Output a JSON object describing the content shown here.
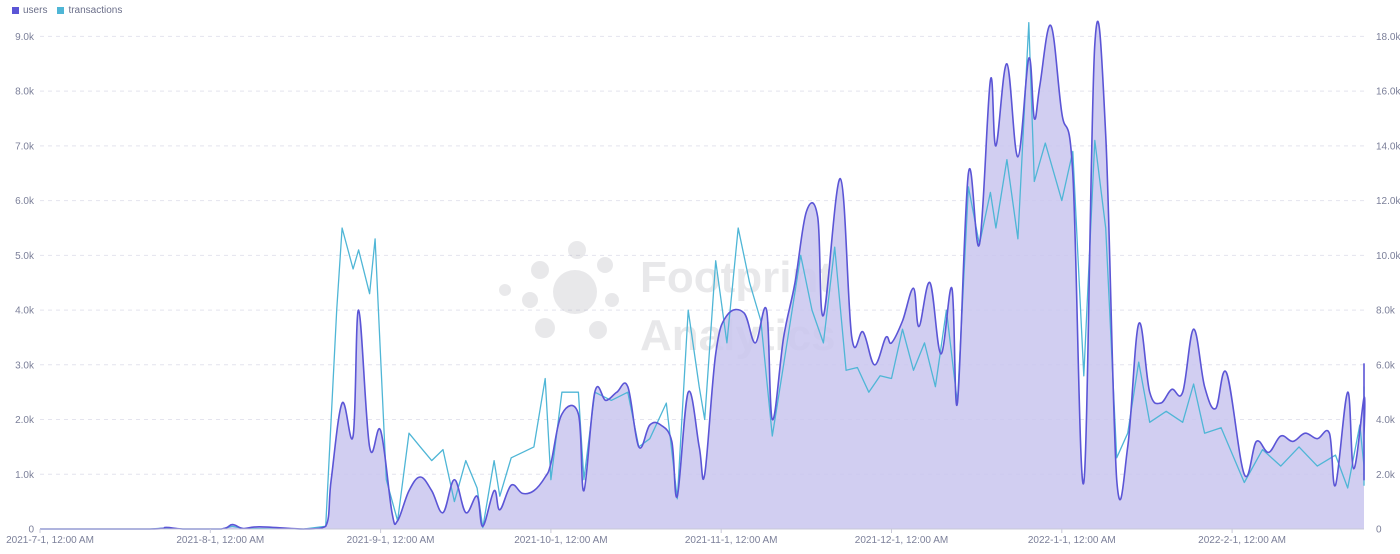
{
  "legend": [
    {
      "label": "users",
      "color": "#5b55d6"
    },
    {
      "label": "transactions",
      "color": "#4fb6d6"
    }
  ],
  "watermark": {
    "line1": "Footprint",
    "line2": "Analytics"
  },
  "chart_data": {
    "type": "line",
    "x_start": "2021-07-01",
    "x_end": "2022-02-28",
    "x_ticks": [
      "2021-7-1, 12:00 AM",
      "2021-8-1, 12:00 AM",
      "2021-9-1, 12:00 AM",
      "2021-10-1, 12:00 AM",
      "2021-11-1, 12:00 AM",
      "2021-12-1, 12:00 AM",
      "2022-1-1, 12:00 AM",
      "2022-2-1, 12:00 AM"
    ],
    "y_left_ticks": [
      "0",
      "1.0k",
      "2.0k",
      "3.0k",
      "4.0k",
      "5.0k",
      "6.0k",
      "7.0k",
      "8.0k",
      "9.0k"
    ],
    "y_right_ticks": [
      "0",
      "2.0k",
      "4.0k",
      "6.0k",
      "8.0k",
      "10.0k",
      "12.0k",
      "14.0k",
      "16.0k",
      "18.0k"
    ],
    "y_left_range": [
      0,
      9300
    ],
    "y_right_range": [
      0,
      18600
    ],
    "grid": "horizontal dashed",
    "legend_position": "top-left",
    "series": [
      {
        "name": "users",
        "axis": "left",
        "area": true,
        "color": "#5b55d6",
        "fill": "#c9c5ef",
        "points": [
          [
            "2021-07-01",
            0
          ],
          [
            "2021-07-21",
            0
          ],
          [
            "2021-07-24",
            30
          ],
          [
            "2021-07-27",
            0
          ],
          [
            "2021-08-03",
            0
          ],
          [
            "2021-08-05",
            80
          ],
          [
            "2021-08-07",
            10
          ],
          [
            "2021-08-10",
            40
          ],
          [
            "2021-08-18",
            0
          ],
          [
            "2021-08-22",
            50
          ],
          [
            "2021-08-23",
            900
          ],
          [
            "2021-08-25",
            2300
          ],
          [
            "2021-08-27",
            1700
          ],
          [
            "2021-08-28",
            4000
          ],
          [
            "2021-08-30",
            1500
          ],
          [
            "2021-09-01",
            1800
          ],
          [
            "2021-09-03",
            300
          ],
          [
            "2021-09-04",
            150
          ],
          [
            "2021-09-06",
            700
          ],
          [
            "2021-09-08",
            950
          ],
          [
            "2021-09-10",
            700
          ],
          [
            "2021-09-12",
            300
          ],
          [
            "2021-09-14",
            900
          ],
          [
            "2021-09-16",
            300
          ],
          [
            "2021-09-18",
            600
          ],
          [
            "2021-09-19",
            50
          ],
          [
            "2021-09-21",
            700
          ],
          [
            "2021-09-22",
            350
          ],
          [
            "2021-09-24",
            800
          ],
          [
            "2021-09-26",
            650
          ],
          [
            "2021-09-28",
            700
          ],
          [
            "2021-09-30",
            950
          ],
          [
            "2021-10-01",
            1200
          ],
          [
            "2021-10-03",
            2100
          ],
          [
            "2021-10-06",
            2100
          ],
          [
            "2021-10-07",
            700
          ],
          [
            "2021-10-09",
            2500
          ],
          [
            "2021-10-11",
            2350
          ],
          [
            "2021-10-13",
            2500
          ],
          [
            "2021-10-15",
            2600
          ],
          [
            "2021-10-17",
            1500
          ],
          [
            "2021-10-19",
            1900
          ],
          [
            "2021-10-21",
            1900
          ],
          [
            "2021-10-23",
            1600
          ],
          [
            "2021-10-24",
            600
          ],
          [
            "2021-10-26",
            2500
          ],
          [
            "2021-10-28",
            1500
          ],
          [
            "2021-10-29",
            1000
          ],
          [
            "2021-10-31",
            3200
          ],
          [
            "2021-11-02",
            3900
          ],
          [
            "2021-11-05",
            3950
          ],
          [
            "2021-11-07",
            3400
          ],
          [
            "2021-11-09",
            4000
          ],
          [
            "2021-11-10",
            2000
          ],
          [
            "2021-11-12",
            3500
          ],
          [
            "2021-11-14",
            4500
          ],
          [
            "2021-11-16",
            5800
          ],
          [
            "2021-11-18",
            5700
          ],
          [
            "2021-11-19",
            3900
          ],
          [
            "2021-11-22",
            6400
          ],
          [
            "2021-11-24",
            3500
          ],
          [
            "2021-11-26",
            3600
          ],
          [
            "2021-11-28",
            3000
          ],
          [
            "2021-11-30",
            3500
          ],
          [
            "2021-12-01",
            3400
          ],
          [
            "2021-12-03",
            3800
          ],
          [
            "2021-12-05",
            4400
          ],
          [
            "2021-12-06",
            3700
          ],
          [
            "2021-12-08",
            4500
          ],
          [
            "2021-12-10",
            3200
          ],
          [
            "2021-12-12",
            4400
          ],
          [
            "2021-12-13",
            2300
          ],
          [
            "2021-12-15",
            6500
          ],
          [
            "2021-12-17",
            5200
          ],
          [
            "2021-12-19",
            8200
          ],
          [
            "2021-12-20",
            7000
          ],
          [
            "2021-12-22",
            8500
          ],
          [
            "2021-12-24",
            6800
          ],
          [
            "2021-12-26",
            8600
          ],
          [
            "2021-12-27",
            7500
          ],
          [
            "2021-12-28",
            8100
          ],
          [
            "2021-12-30",
            9200
          ],
          [
            "2022-01-01",
            7600
          ],
          [
            "2022-01-03",
            6500
          ],
          [
            "2022-01-05",
            850
          ],
          [
            "2022-01-07",
            8850
          ],
          [
            "2022-01-09",
            7200
          ],
          [
            "2022-01-11",
            900
          ],
          [
            "2022-01-13",
            1500
          ],
          [
            "2022-01-15",
            3750
          ],
          [
            "2022-01-17",
            2500
          ],
          [
            "2022-01-19",
            2300
          ],
          [
            "2022-01-21",
            2550
          ],
          [
            "2022-01-23",
            2500
          ],
          [
            "2022-01-25",
            3650
          ],
          [
            "2022-01-27",
            2600
          ],
          [
            "2022-01-29",
            2200
          ],
          [
            "2022-01-31",
            2850
          ],
          [
            "2022-02-03",
            1000
          ],
          [
            "2022-02-05",
            1600
          ],
          [
            "2022-02-07",
            1400
          ],
          [
            "2022-02-09",
            1700
          ],
          [
            "2022-02-11",
            1600
          ],
          [
            "2022-02-13",
            1750
          ],
          [
            "2022-02-15",
            1650
          ],
          [
            "2022-02-17",
            1750
          ],
          [
            "2022-02-18",
            800
          ],
          [
            "2022-02-20",
            2500
          ],
          [
            "2022-02-21",
            1100
          ],
          [
            "2022-02-23",
            2400
          ],
          [
            "2022-02-25",
            1700
          ],
          [
            "2022-02-26",
            2000
          ],
          [
            "2022-02-28",
            1000
          ],
          [
            "2022-03-02",
            3000
          ],
          [
            "2022-03-04",
            1900
          ],
          [
            "2022-03-06",
            2200
          ],
          [
            "2022-03-07",
            900
          ],
          [
            "2022-03-09",
            2100
          ],
          [
            "2022-03-13",
            2050
          ],
          [
            "2022-03-15",
            2150
          ],
          [
            "2022-03-18",
            2100
          ]
        ]
      },
      {
        "name": "transactions",
        "axis": "right",
        "area": false,
        "color": "#4fb6d6",
        "points": [
          [
            "2021-07-01",
            0
          ],
          [
            "2021-07-21",
            0
          ],
          [
            "2021-07-24",
            40
          ],
          [
            "2021-07-27",
            0
          ],
          [
            "2021-08-03",
            0
          ],
          [
            "2021-08-05",
            100
          ],
          [
            "2021-08-07",
            20
          ],
          [
            "2021-08-18",
            0
          ],
          [
            "2021-08-22",
            100
          ],
          [
            "2021-08-24",
            8000
          ],
          [
            "2021-08-25",
            11000
          ],
          [
            "2021-08-27",
            9500
          ],
          [
            "2021-08-28",
            10200
          ],
          [
            "2021-08-30",
            8600
          ],
          [
            "2021-08-31",
            10600
          ],
          [
            "2021-09-02",
            1800
          ],
          [
            "2021-09-04",
            300
          ],
          [
            "2021-09-06",
            3500
          ],
          [
            "2021-09-08",
            3000
          ],
          [
            "2021-09-10",
            2500
          ],
          [
            "2021-09-12",
            2900
          ],
          [
            "2021-09-14",
            1000
          ],
          [
            "2021-09-16",
            2500
          ],
          [
            "2021-09-18",
            1500
          ],
          [
            "2021-09-19",
            50
          ],
          [
            "2021-09-21",
            2500
          ],
          [
            "2021-09-22",
            1200
          ],
          [
            "2021-09-24",
            2600
          ],
          [
            "2021-09-26",
            2800
          ],
          [
            "2021-09-28",
            3000
          ],
          [
            "2021-09-30",
            5500
          ],
          [
            "2021-10-01",
            1800
          ],
          [
            "2021-10-03",
            5000
          ],
          [
            "2021-10-06",
            5000
          ],
          [
            "2021-10-07",
            1800
          ],
          [
            "2021-10-09",
            5000
          ],
          [
            "2021-10-12",
            4700
          ],
          [
            "2021-10-15",
            5000
          ],
          [
            "2021-10-17",
            3000
          ],
          [
            "2021-10-19",
            3300
          ],
          [
            "2021-10-22",
            4600
          ],
          [
            "2021-10-24",
            1100
          ],
          [
            "2021-10-26",
            8000
          ],
          [
            "2021-10-28",
            5200
          ],
          [
            "2021-10-29",
            4000
          ],
          [
            "2021-10-31",
            9800
          ],
          [
            "2021-11-02",
            6800
          ],
          [
            "2021-11-04",
            11000
          ],
          [
            "2021-11-06",
            9000
          ],
          [
            "2021-11-08",
            7600
          ],
          [
            "2021-11-10",
            3400
          ],
          [
            "2021-11-12",
            6000
          ],
          [
            "2021-11-15",
            10000
          ],
          [
            "2021-11-17",
            8000
          ],
          [
            "2021-11-19",
            6800
          ],
          [
            "2021-11-21",
            10300
          ],
          [
            "2021-11-23",
            5800
          ],
          [
            "2021-11-25",
            5900
          ],
          [
            "2021-11-27",
            5000
          ],
          [
            "2021-11-29",
            5600
          ],
          [
            "2021-12-01",
            5500
          ],
          [
            "2021-12-03",
            7300
          ],
          [
            "2021-12-05",
            5800
          ],
          [
            "2021-12-07",
            6800
          ],
          [
            "2021-12-09",
            5200
          ],
          [
            "2021-12-11",
            8000
          ],
          [
            "2021-12-13",
            4600
          ],
          [
            "2021-12-15",
            12500
          ],
          [
            "2021-12-17",
            10400
          ],
          [
            "2021-12-19",
            12300
          ],
          [
            "2021-12-20",
            11000
          ],
          [
            "2021-12-22",
            13500
          ],
          [
            "2021-12-24",
            10600
          ],
          [
            "2021-12-26",
            18500
          ],
          [
            "2021-12-27",
            12700
          ],
          [
            "2021-12-29",
            14100
          ],
          [
            "2022-01-01",
            12000
          ],
          [
            "2022-01-03",
            13800
          ],
          [
            "2022-01-05",
            5600
          ],
          [
            "2022-01-07",
            14200
          ],
          [
            "2022-01-09",
            11000
          ],
          [
            "2022-01-11",
            2600
          ],
          [
            "2022-01-13",
            3500
          ],
          [
            "2022-01-15",
            6100
          ],
          [
            "2022-01-17",
            3900
          ],
          [
            "2022-01-20",
            4300
          ],
          [
            "2022-01-23",
            3900
          ],
          [
            "2022-01-25",
            5300
          ],
          [
            "2022-01-27",
            3500
          ],
          [
            "2022-01-30",
            3700
          ],
          [
            "2022-02-03",
            1700
          ],
          [
            "2022-02-06",
            2900
          ],
          [
            "2022-02-09",
            2300
          ],
          [
            "2022-02-12",
            3000
          ],
          [
            "2022-02-15",
            2300
          ],
          [
            "2022-02-18",
            2700
          ],
          [
            "2022-02-20",
            1500
          ],
          [
            "2022-02-22",
            3800
          ],
          [
            "2022-02-24",
            2300
          ],
          [
            "2022-02-26",
            3700
          ],
          [
            "2022-02-28",
            2800
          ],
          [
            "2022-03-02",
            5000
          ],
          [
            "2022-03-05",
            3500
          ],
          [
            "2022-03-07",
            1600
          ],
          [
            "2022-03-09",
            5200
          ],
          [
            "2022-03-11",
            4000
          ],
          [
            "2022-03-13",
            3600
          ],
          [
            "2022-03-16",
            3200
          ],
          [
            "2022-03-18",
            3600
          ]
        ]
      }
    ]
  }
}
